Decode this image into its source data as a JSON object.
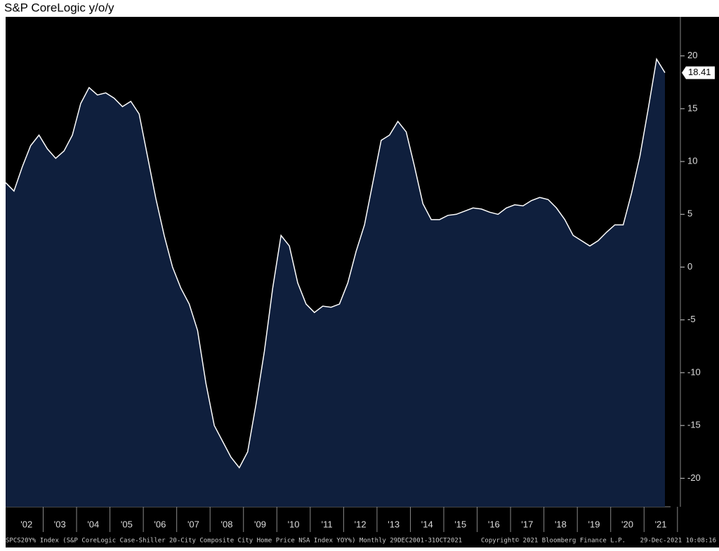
{
  "chart_data": {
    "type": "area",
    "title": "S&P CoreLogic y/o/y",
    "categories": [
      null,
      null,
      "'02",
      null,
      null,
      null,
      "'03",
      null,
      null,
      null,
      "'04",
      null,
      null,
      null,
      "'05",
      null,
      null,
      null,
      "'06",
      null,
      null,
      null,
      "'07",
      null,
      null,
      null,
      "'08",
      null,
      null,
      null,
      "'09",
      null,
      null,
      null,
      "'10",
      null,
      null,
      null,
      "'11",
      null,
      null,
      null,
      "'12",
      null,
      null,
      null,
      "'13",
      null,
      null,
      null,
      "'14",
      null,
      null,
      null,
      "'15",
      null,
      null,
      null,
      "'16",
      null,
      null,
      null,
      "'17",
      null,
      null,
      null,
      "'18",
      null,
      null,
      null,
      "'19",
      null,
      null,
      null,
      "'20",
      null,
      null,
      null,
      "'21",
      null
    ],
    "series": [
      {
        "name": "SPCS20Y% Index",
        "color": "#ffffff",
        "fill": "#0f1f3d",
        "values": [
          8,
          7.2,
          9.5,
          11.5,
          12.5,
          11.2,
          10.3,
          11,
          12.5,
          15.5,
          17,
          16.3,
          16.5,
          16,
          15.2,
          15.7,
          14.5,
          10.5,
          6.5,
          3,
          0,
          -2,
          -3.5,
          -6,
          -11,
          -15,
          -16.5,
          -18,
          -19,
          -17.5,
          -13,
          -8,
          -2,
          3,
          2,
          -1.5,
          -3.5,
          -4.3,
          -3.7,
          -3.8,
          -3.5,
          -1.5,
          1.5,
          4,
          8,
          12,
          12.5,
          13.8,
          12.8,
          9.5,
          6,
          4.5,
          4.5,
          4.9,
          5,
          5.3,
          5.6,
          5.5,
          5.2,
          5,
          5.6,
          5.9,
          5.8,
          6.3,
          6.6,
          6.4,
          5.6,
          4.5,
          3,
          2.5,
          2,
          2.5,
          3.3,
          4,
          4,
          7,
          10.5,
          15,
          19.7,
          18.41
        ]
      }
    ],
    "ylim": [
      -22.7,
      23.7
    ],
    "yticks": [
      -20,
      -15,
      -10,
      -5,
      0,
      5,
      10,
      15,
      20
    ],
    "source": "SPCS20Y% Index (S&P CoreLogic Case-Shiller 20-City Composite City Home Price NSA Index YOY%)  Monthly 29DEC2001-31OCT2021",
    "copyright": "Copyright© 2021 Bloomberg Finance L.P.",
    "timestamp": "29-Dec-2021 10:08:16"
  }
}
